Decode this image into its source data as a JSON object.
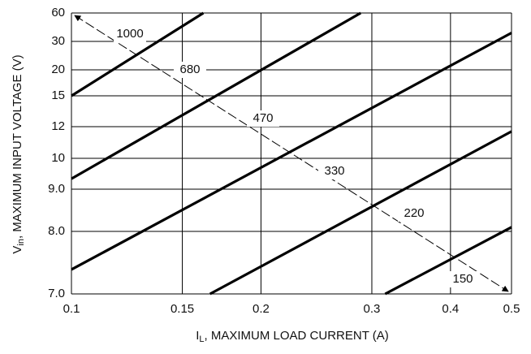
{
  "chart_data": {
    "type": "line",
    "x_label": [
      "I",
      "L",
      ", MAXIMUM LOAD CURRENT (A)"
    ],
    "y_label": [
      "V",
      "in",
      ", MAXIMUM INPUT VOLTAGE (V)"
    ],
    "xscale": "log",
    "xlim": [
      0.1,
      0.5
    ],
    "xticks": [
      0.1,
      0.15,
      0.2,
      0.3,
      0.4,
      0.5
    ],
    "ylim": [
      7,
      60
    ],
    "yticks": [
      60,
      30,
      20,
      15,
      12,
      10,
      {
        "value": 9,
        "label": "9.0"
      },
      {
        "value": 8,
        "label": "8.0"
      },
      {
        "value": 7,
        "label": "7.0"
      }
    ],
    "grid": true,
    "color": "#000000",
    "series": [
      {
        "x": [
          0.1,
          0.162
        ],
        "values": [
          15,
          60
        ]
      },
      {
        "x": [
          0.1,
          0.288
        ],
        "values": [
          9.34,
          60
        ]
      },
      {
        "x": [
          0.1,
          0.5
        ],
        "values": [
          7.39,
          39
        ]
      },
      {
        "x": [
          0.166,
          0.5
        ],
        "values": [
          7,
          11.7
        ]
      },
      {
        "x": [
          0.315,
          0.5
        ],
        "values": [
          7,
          8.1
        ]
      }
    ],
    "annotations": [
      "1000",
      "680",
      "470",
      "330",
      "220",
      "150"
    ]
  }
}
